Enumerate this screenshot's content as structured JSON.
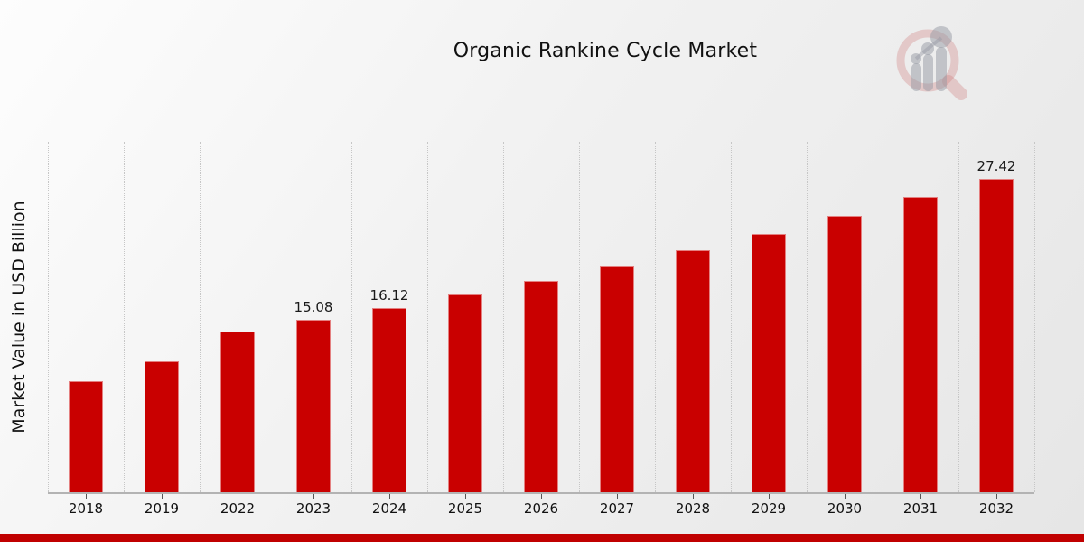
{
  "title": "Organic Rankine Cycle Market",
  "ylabel": "Market Value in USD Billion",
  "accent_color": "#c90000",
  "footer_bar_color": "#c00000",
  "watermark_icon": "magnifier-growth-barchart-logo",
  "chart_data": {
    "type": "bar",
    "title": "Organic Rankine Cycle Market",
    "xlabel": "",
    "ylabel": "Market Value in USD Billion",
    "categories": [
      "2018",
      "2019",
      "2022",
      "2023",
      "2024",
      "2025",
      "2026",
      "2027",
      "2028",
      "2029",
      "2030",
      "2031",
      "2032"
    ],
    "values": [
      9.7,
      11.5,
      14.1,
      15.08,
      16.12,
      17.3,
      18.5,
      19.8,
      21.2,
      22.6,
      24.2,
      25.9,
      27.42
    ],
    "data_labels": {
      "2023": "15.08",
      "2024": "16.12",
      "2032": "27.42"
    },
    "ylim": [
      0,
      30.7
    ],
    "y_ticks_visible": false,
    "grid": "vertical-dotted",
    "legend": "none",
    "bar_color": "#c90000"
  }
}
